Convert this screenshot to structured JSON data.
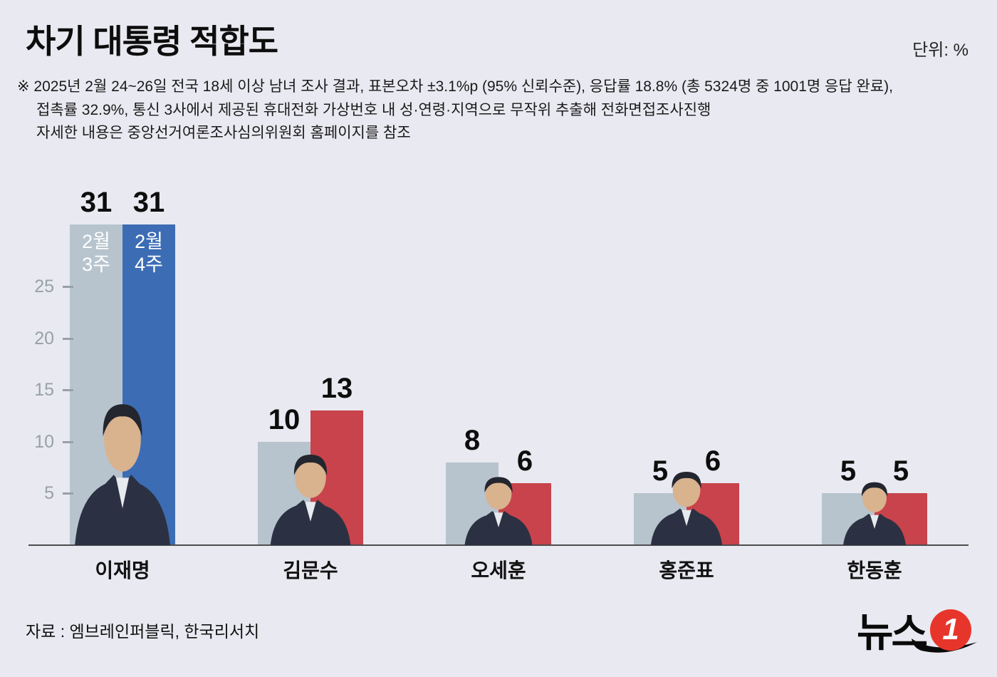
{
  "header": {
    "title": "차기 대통령 적합도",
    "unit_label": "단위: %"
  },
  "note": {
    "line1": "※ 2025년 2월 24~26일 전국 18세 이상 남녀 조사 결과, 표본오차 ±3.1%p (95% 신뢰수준), 응답률 18.8% (총 5324명 중 1001명 응답 완료),",
    "line2": "접촉률 32.9%, 통신 3사에서 제공된 휴대전화 가상번호 내 성·연령·지역으로 무작위 추출해 전화면접조사진행",
    "line3": "자세한 내용은 중앙선거여론조사심의위원회 홈페이지를 참조"
  },
  "chart_data": {
    "type": "bar",
    "title": "차기 대통령 적합도",
    "unit": "%",
    "categories": [
      "이재명",
      "김문수",
      "오세훈",
      "홍준표",
      "한동훈"
    ],
    "series": [
      {
        "name": "2월 3주",
        "values": [
          31,
          10,
          8,
          5,
          5
        ],
        "color": "#b7c4ce"
      },
      {
        "name": "2월 4주",
        "values": [
          31,
          13,
          6,
          6,
          5
        ],
        "colors": [
          "#3c6cb4",
          "#c8434b",
          "#c8434b",
          "#c8434b",
          "#c8434b"
        ]
      }
    ],
    "y_ticks": [
      5,
      10,
      15,
      20,
      25
    ],
    "ylim": [
      0,
      31
    ],
    "grid": false,
    "legend": "period labels shown inside first group bars only"
  },
  "footer": {
    "source": "자료 : 엠브레인퍼블릭, 한국리서치",
    "logo": {
      "text": "뉴스",
      "badge": "1"
    }
  }
}
